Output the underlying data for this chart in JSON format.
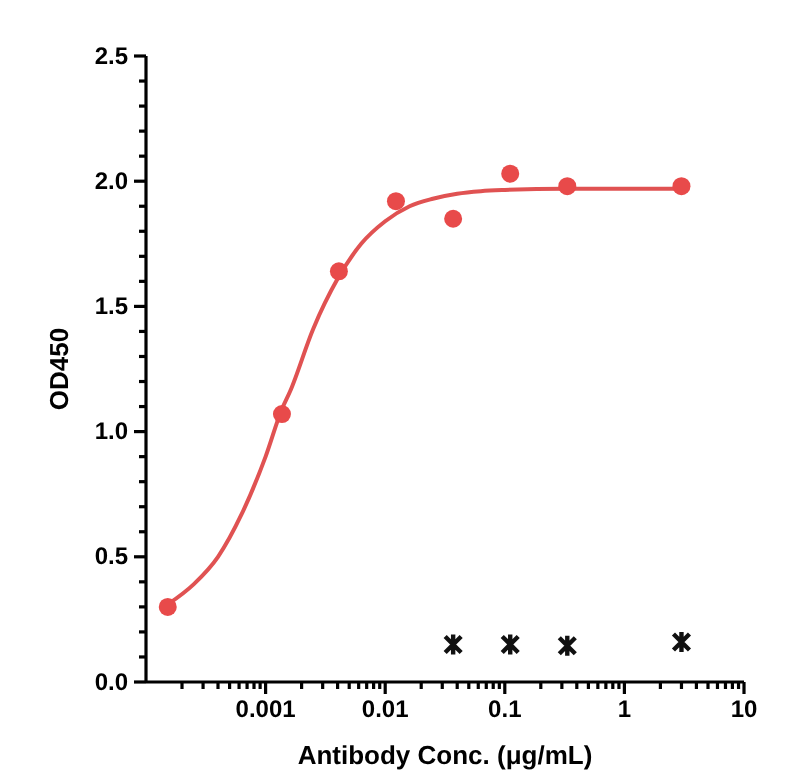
{
  "chart_data": {
    "type": "scatter",
    "xlabel": "Antibody Conc. (μg/mL)",
    "ylabel": "OD450",
    "log": "x",
    "grid": false,
    "xlim": [
      0.0001,
      10
    ],
    "ylim": [
      0,
      2.5
    ],
    "xticks": [
      {
        "value": 0.0002,
        "label": null
      },
      {
        "value": 0.0003,
        "label": null
      },
      {
        "value": 0.0004,
        "label": null
      },
      {
        "value": 0.0005,
        "label": null
      },
      {
        "value": 0.0006,
        "label": null
      },
      {
        "value": 0.0007,
        "label": null
      },
      {
        "value": 0.0008,
        "label": null
      },
      {
        "value": 0.0009,
        "label": null
      },
      {
        "value": 0.001,
        "label": "0.001"
      },
      {
        "value": 0.002,
        "label": null
      },
      {
        "value": 0.003,
        "label": null
      },
      {
        "value": 0.004,
        "label": null
      },
      {
        "value": 0.005,
        "label": null
      },
      {
        "value": 0.006,
        "label": null
      },
      {
        "value": 0.007,
        "label": null
      },
      {
        "value": 0.008,
        "label": null
      },
      {
        "value": 0.009,
        "label": null
      },
      {
        "value": 0.01,
        "label": "0.01"
      },
      {
        "value": 0.02,
        "label": null
      },
      {
        "value": 0.03,
        "label": null
      },
      {
        "value": 0.04,
        "label": null
      },
      {
        "value": 0.05,
        "label": null
      },
      {
        "value": 0.06,
        "label": null
      },
      {
        "value": 0.07,
        "label": null
      },
      {
        "value": 0.08,
        "label": null
      },
      {
        "value": 0.09,
        "label": null
      },
      {
        "value": 0.1,
        "label": "0.1"
      },
      {
        "value": 0.2,
        "label": null
      },
      {
        "value": 0.3,
        "label": null
      },
      {
        "value": 0.4,
        "label": null
      },
      {
        "value": 0.5,
        "label": null
      },
      {
        "value": 0.6,
        "label": null
      },
      {
        "value": 0.7,
        "label": null
      },
      {
        "value": 0.8,
        "label": null
      },
      {
        "value": 0.9,
        "label": null
      },
      {
        "value": 1,
        "label": "1"
      },
      {
        "value": 2,
        "label": null
      },
      {
        "value": 3,
        "label": null
      },
      {
        "value": 4,
        "label": null
      },
      {
        "value": 5,
        "label": null
      },
      {
        "value": 6,
        "label": null
      },
      {
        "value": 7,
        "label": null
      },
      {
        "value": 8,
        "label": null
      },
      {
        "value": 9,
        "label": null
      },
      {
        "value": 10,
        "label": "10"
      }
    ],
    "yticks": [
      {
        "value": 0,
        "label": "0.0"
      },
      {
        "value": 0.1,
        "label": null
      },
      {
        "value": 0.2,
        "label": null
      },
      {
        "value": 0.3,
        "label": null
      },
      {
        "value": 0.4,
        "label": null
      },
      {
        "value": 0.5,
        "label": "0.5"
      },
      {
        "value": 0.6,
        "label": null
      },
      {
        "value": 0.7,
        "label": null
      },
      {
        "value": 0.8,
        "label": null
      },
      {
        "value": 0.9,
        "label": null
      },
      {
        "value": 1,
        "label": "1.0"
      },
      {
        "value": 1.1,
        "label": null
      },
      {
        "value": 1.2,
        "label": null
      },
      {
        "value": 1.3,
        "label": null
      },
      {
        "value": 1.4,
        "label": null
      },
      {
        "value": 1.5,
        "label": "1.5"
      },
      {
        "value": 1.6,
        "label": null
      },
      {
        "value": 1.7,
        "label": null
      },
      {
        "value": 1.8,
        "label": null
      },
      {
        "value": 1.9,
        "label": null
      },
      {
        "value": 2,
        "label": "2.0"
      },
      {
        "value": 2.1,
        "label": null
      },
      {
        "value": 2.2,
        "label": null
      },
      {
        "value": 2.3,
        "label": null
      },
      {
        "value": 2.4,
        "label": null
      },
      {
        "value": 2.5,
        "label": "2.5"
      }
    ],
    "series": [
      {
        "type": "line",
        "color": "#e05252",
        "marker": "none",
        "line_style": "solid",
        "x": [
          0.000152,
          0.00025,
          0.0004,
          0.00063,
          0.001,
          0.00137,
          0.0016,
          0.0025,
          0.004,
          0.0063,
          0.01,
          0.016,
          0.025,
          0.04,
          0.063,
          0.1,
          0.32,
          3
        ],
        "values": [
          0.31,
          0.39,
          0.5,
          0.67,
          0.9,
          1.09,
          1.16,
          1.41,
          1.61,
          1.75,
          1.84,
          1.9,
          1.93,
          1.95,
          1.96,
          1.965,
          1.97,
          1.97
        ]
      },
      {
        "color": "#e84a4a",
        "marker": "circle",
        "x": [
          0.000152,
          0.00137,
          0.0041,
          0.0123,
          0.037,
          0.111,
          0.333,
          3
        ],
        "values": [
          0.3,
          1.07,
          1.64,
          1.92,
          1.85,
          2.03,
          1.98,
          1.98
        ]
      },
      {
        "color": "#111111",
        "marker": "cross",
        "x": [
          0.037,
          0.111,
          0.333,
          3
        ],
        "values": [
          0.15,
          0.15,
          0.145,
          0.16
        ]
      }
    ]
  }
}
